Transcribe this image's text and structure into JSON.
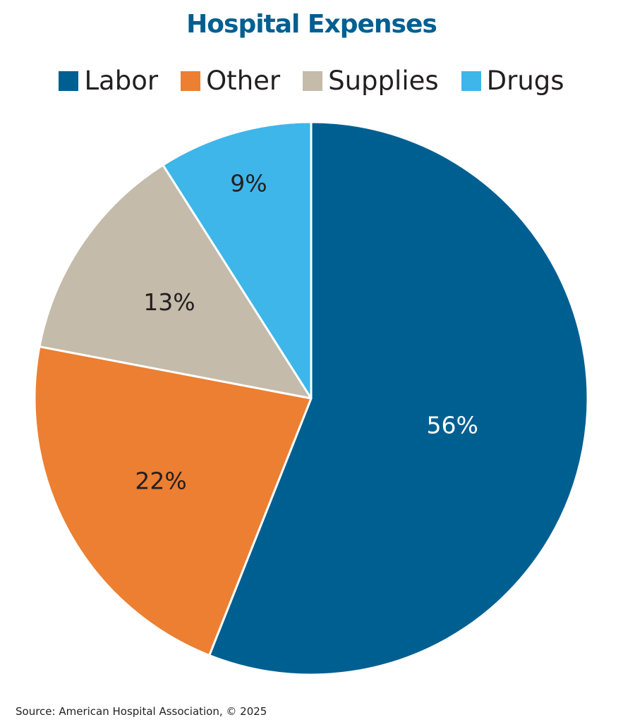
{
  "chart_data": {
    "type": "pie",
    "title": "Hospital Expenses",
    "categories": [
      "Labor",
      "Other",
      "Supplies",
      "Drugs"
    ],
    "values": [
      56,
      22,
      13,
      9
    ],
    "data_labels": [
      "56%",
      "22%",
      "13%",
      "9%"
    ],
    "colors": [
      "#005f91",
      "#ec7f31",
      "#c4bbab",
      "#3eb6ea"
    ],
    "label_colors": [
      "#ffffff",
      "#231f20",
      "#231f20",
      "#231f20"
    ],
    "legend_position": "top"
  },
  "title_color": "#005f91",
  "source": "Source: American Hospital Association, © 2025"
}
